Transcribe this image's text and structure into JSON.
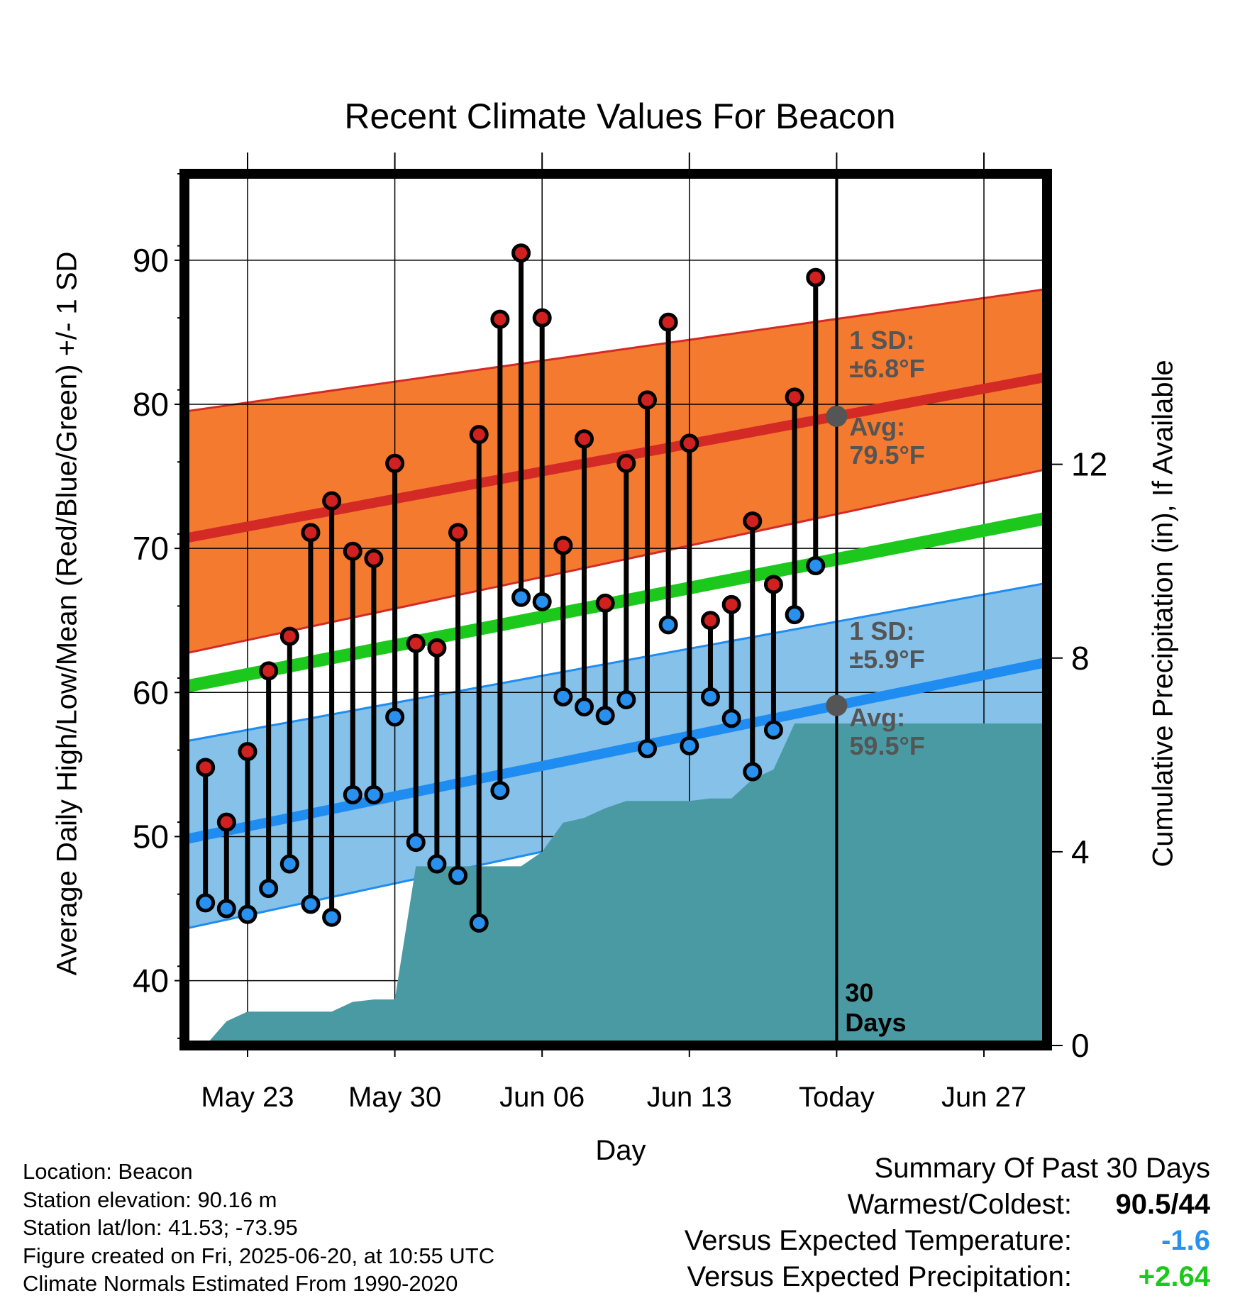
{
  "chart_data": {
    "type": "line",
    "title": "Recent Climate Values For Beacon",
    "xlabel": "Day",
    "ylabel": "Average Daily High/Low/Mean (Red/Blue/Green) +/- 1 SD",
    "y2label": "Cumulative Precipitation (in), If Available",
    "x_tick_labels": [
      "May 23",
      "May 30",
      "Jun 06",
      "Jun 13",
      "Today",
      "Jun 27"
    ],
    "x_tick_dates": [
      "2025-05-23",
      "2025-05-30",
      "2025-06-06",
      "2025-06-13",
      "2025-06-20",
      "2025-06-27"
    ],
    "xlim": [
      "2025-05-20",
      "2025-06-30"
    ],
    "today": "2025-06-20",
    "ylim": [
      35.5,
      96
    ],
    "y_ticks": [
      40,
      50,
      60,
      70,
      80,
      90
    ],
    "y2lim": [
      0,
      18
    ],
    "y2_ticks": [
      0,
      4,
      8,
      12
    ],
    "grid": true,
    "dates": [
      "2025-05-21",
      "2025-05-22",
      "2025-05-23",
      "2025-05-24",
      "2025-05-25",
      "2025-05-26",
      "2025-05-27",
      "2025-05-28",
      "2025-05-29",
      "2025-05-30",
      "2025-05-31",
      "2025-06-01",
      "2025-06-02",
      "2025-06-03",
      "2025-06-04",
      "2025-06-05",
      "2025-06-06",
      "2025-06-07",
      "2025-06-08",
      "2025-06-09",
      "2025-06-10",
      "2025-06-11",
      "2025-06-12",
      "2025-06-13",
      "2025-06-14",
      "2025-06-15",
      "2025-06-16",
      "2025-06-17",
      "2025-06-18",
      "2025-06-19"
    ],
    "highs": [
      54.8,
      51.0,
      55.9,
      61.5,
      63.9,
      71.1,
      73.3,
      69.8,
      69.3,
      75.9,
      63.4,
      63.1,
      71.1,
      77.9,
      85.9,
      90.5,
      86.0,
      70.2,
      77.6,
      66.2,
      75.9,
      80.3,
      85.7,
      77.3,
      65.0,
      66.1,
      71.9,
      67.5,
      80.5,
      88.8
    ],
    "lows": [
      45.4,
      45.0,
      44.6,
      46.4,
      48.1,
      45.3,
      44.4,
      52.9,
      52.9,
      58.3,
      49.6,
      48.1,
      47.3,
      44.0,
      53.2,
      66.6,
      66.3,
      59.7,
      59.0,
      58.4,
      59.5,
      56.1,
      64.7,
      56.3,
      59.7,
      58.2,
      54.5,
      57.4,
      65.4,
      68.8
    ],
    "normals": {
      "x": [
        "2025-05-20",
        "2025-06-30"
      ],
      "high_avg": [
        70.7,
        81.9
      ],
      "high_sd_upper": [
        79.5,
        88.0
      ],
      "high_sd_lower": [
        62.7,
        75.5
      ],
      "low_avg": [
        49.8,
        62.1
      ],
      "low_sd_upper": [
        56.6,
        67.6
      ],
      "low_sd_lower": [
        43.6,
        56.5
      ],
      "mean_avg": [
        60.4,
        72.1
      ]
    },
    "precip_cumulative": {
      "x": [
        "2025-05-20",
        "2025-05-21",
        "2025-05-22",
        "2025-05-23",
        "2025-05-24",
        "2025-05-25",
        "2025-05-26",
        "2025-05-27",
        "2025-05-28",
        "2025-05-29",
        "2025-05-30",
        "2025-05-31",
        "2025-06-01",
        "2025-06-02",
        "2025-06-03",
        "2025-06-04",
        "2025-06-05",
        "2025-06-06",
        "2025-06-07",
        "2025-06-08",
        "2025-06-09",
        "2025-06-10",
        "2025-06-11",
        "2025-06-12",
        "2025-06-13",
        "2025-06-14",
        "2025-06-15",
        "2025-06-16",
        "2025-06-17",
        "2025-06-18",
        "2025-06-19",
        "2025-06-20",
        "2025-06-30"
      ],
      "y": [
        0,
        0,
        0.5,
        0.7,
        0.7,
        0.7,
        0.7,
        0.7,
        0.9,
        0.95,
        0.95,
        3.7,
        3.7,
        3.7,
        3.7,
        3.7,
        3.7,
        4.0,
        4.6,
        4.7,
        4.9,
        5.05,
        5.05,
        5.05,
        5.05,
        5.1,
        5.1,
        5.5,
        5.7,
        6.65,
        6.65,
        6.65,
        6.65
      ]
    },
    "annotations": {
      "high_sd_label": "1 SD:",
      "high_sd_value": "±6.8°F",
      "high_avg_label": "Avg:",
      "high_avg_value": "79.5°F",
      "low_sd_label": "1 SD:",
      "low_sd_value": "±5.9°F",
      "low_avg_label": "Avg:",
      "low_avg_value": "59.5°F",
      "days_num": "30",
      "days_word": "Days"
    },
    "colors": {
      "high_band": "#f47a30",
      "high_line": "#d42a26",
      "low_band": "#85c1e9",
      "low_line": "#1e8cf0",
      "mean_line": "#1dc81d",
      "precip": "#4a9aa3",
      "high_dot": "#d02020",
      "low_dot": "#2891f0",
      "avg_marker": "#555555",
      "annotation_text": "#555555"
    }
  },
  "info": {
    "location": "Location: Beacon",
    "elevation": "Station elevation: 90.16 m",
    "latlon": "Station lat/lon: 41.53; -73.95",
    "created": "Figure created on Fri, 2025-06-20, at 10:55 UTC",
    "normals": "Climate Normals Estimated From 1990-2020"
  },
  "summary": {
    "title": "Summary Of Past 30 Days",
    "warmest_label": "Warmest/Coldest:",
    "warmest_value": "90.5/44",
    "temp_label": "Versus Expected Temperature:",
    "temp_value": "-1.6",
    "temp_color": "#2891f0",
    "precip_label": "Versus Expected Precipitation:",
    "precip_value": "+2.64",
    "precip_color": "#1dc81d"
  }
}
